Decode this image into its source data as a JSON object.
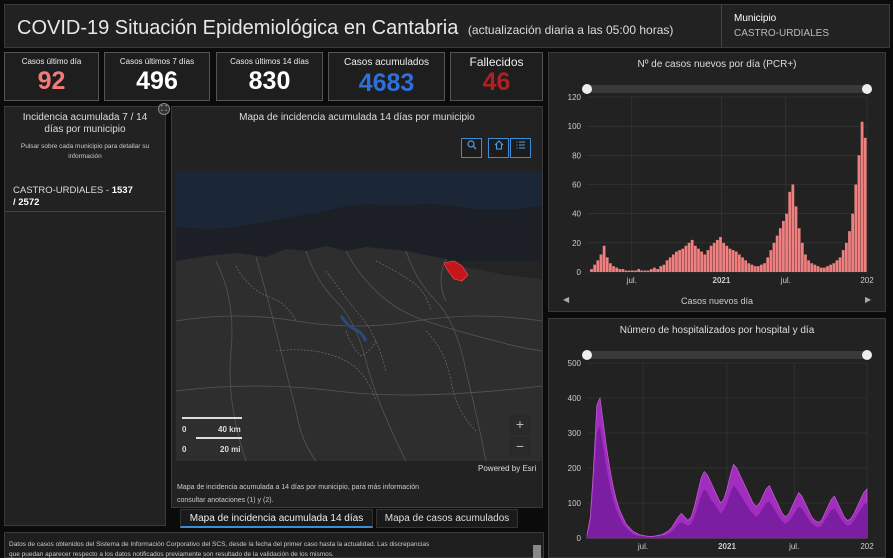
{
  "header": {
    "title": "COVID-19 Situación Epidemiológica en Cantabria",
    "subtitle": "(actualización diaria a las 05:00 horas)",
    "municipio_label": "Municipio",
    "municipio_value": "CASTRO-URDIALES"
  },
  "kpis": [
    {
      "label": "Casos último día",
      "value": "92",
      "color": "#f47a7a"
    },
    {
      "label": "Casos últimos 7 días",
      "value": "496",
      "color": "#ffffff"
    },
    {
      "label": "Casos últimos 14 días",
      "value": "830",
      "color": "#ffffff"
    },
    {
      "label": "Casos acumulados",
      "value": "4683",
      "color": "#2f6fd8"
    },
    {
      "label": "Fallecidos",
      "value": "46",
      "color": "#b01f24"
    }
  ],
  "left_panel": {
    "title": "Incidencia acumulada 7 / 14 días por municipio",
    "hint": "Pulsar sobre cada municipio para detallar su información",
    "item_name": "CASTRO-URDIALES",
    "item_sep": " - ",
    "item_value_a": "1537",
    "item_value_b": "/ 2572"
  },
  "map": {
    "title": "Mapa de incidencia acumulada 14 días por municipio",
    "search_icon": "search-icon",
    "home_icon": "home-icon",
    "list_icon": "list-icon",
    "scale_km_zero": "0",
    "scale_km": "40 km",
    "scale_mi_zero": "0",
    "scale_mi": "20 mi",
    "zoom_in": "+",
    "zoom_out": "−",
    "powered": "Powered by Esri",
    "caption_line1": "Mapa de incidencia acumulada a 14 días por municipio, para más información",
    "caption_line2": "consultar anotaciones (1) y (2).",
    "highlight_color": "#c4161c"
  },
  "tabs": [
    {
      "label": "Mapa de incidencia acumulada 14 días",
      "active": true
    },
    {
      "label": "Mapa de casos acumulados",
      "active": false
    }
  ],
  "footer": {
    "line1": "Datos de casos obtenidos del Sistema de Información Corporativo del SCS, desde la fecha del primer caso hasta la actualidad. Las discrepancias",
    "line2": "que puedan aparecer respecto a los datos notificados previamente son resultado de la validación de los mismos."
  },
  "chart1": {
    "title": "Nº de casos nuevos por día (PCR+)",
    "legend": "Casos nuevos día",
    "color": "#f08080",
    "nav_left": "◀",
    "nav_right": "▶"
  },
  "chart2": {
    "title": "Número de hospitalizados por hospital y día",
    "color_a": "#b030d0",
    "color_b": "#7a1da0"
  },
  "chart_data": [
    {
      "type": "bar",
      "title": "Nº de casos nuevos por día (PCR+)",
      "xlabel": "",
      "ylabel": "",
      "ylim": [
        0,
        120
      ],
      "yticks": [
        0,
        20,
        40,
        60,
        80,
        100,
        120
      ],
      "xticks": [
        "jul.",
        "2021",
        "jul.",
        "202"
      ],
      "grid": true,
      "legend": "bottom",
      "series": [
        {
          "name": "Casos nuevos día",
          "values": [
            0,
            2,
            5,
            8,
            12,
            18,
            10,
            6,
            4,
            3,
            2,
            2,
            1,
            1,
            1,
            1,
            2,
            1,
            1,
            1,
            2,
            3,
            2,
            4,
            5,
            8,
            10,
            12,
            14,
            15,
            16,
            18,
            20,
            22,
            18,
            16,
            14,
            12,
            15,
            18,
            20,
            22,
            24,
            20,
            18,
            16,
            15,
            14,
            12,
            10,
            8,
            6,
            5,
            4,
            4,
            5,
            6,
            10,
            15,
            20,
            25,
            30,
            35,
            40,
            55,
            60,
            45,
            30,
            20,
            12,
            8,
            6,
            5,
            4,
            3,
            3,
            4,
            5,
            6,
            8,
            10,
            15,
            20,
            28,
            40,
            60,
            80,
            103,
            92
          ]
        }
      ]
    },
    {
      "type": "area",
      "title": "Número de hospitalizados por hospital y día",
      "xlabel": "",
      "ylabel": "",
      "ylim": [
        0,
        500
      ],
      "yticks": [
        0,
        100,
        200,
        300,
        400,
        500
      ],
      "xticks": [
        "jul.",
        "2021",
        "jul.",
        "202"
      ],
      "grid": true,
      "series": [
        {
          "name": "",
          "values": [
            10,
            60,
            200,
            380,
            400,
            330,
            260,
            200,
            150,
            110,
            80,
            60,
            40,
            30,
            20,
            15,
            10,
            8,
            6,
            5,
            5,
            6,
            8,
            10,
            15,
            20,
            30,
            45,
            60,
            70,
            60,
            50,
            60,
            90,
            130,
            170,
            190,
            180,
            160,
            140,
            120,
            100,
            110,
            140,
            180,
            210,
            200,
            180,
            160,
            140,
            120,
            100,
            90,
            100,
            120,
            140,
            150,
            130,
            110,
            90,
            70,
            60,
            70,
            90,
            110,
            130,
            120,
            100,
            80,
            60,
            50,
            45,
            50,
            70,
            90,
            110,
            120,
            100,
            80,
            60,
            50,
            55,
            70,
            90,
            110,
            130,
            140
          ]
        },
        {
          "name": "",
          "values": [
            5,
            40,
            150,
            300,
            320,
            260,
            200,
            150,
            110,
            80,
            60,
            40,
            30,
            20,
            12,
            8,
            6,
            5,
            4,
            3,
            3,
            4,
            5,
            6,
            8,
            12,
            18,
            28,
            40,
            45,
            40,
            35,
            40,
            60,
            90,
            120,
            140,
            130,
            110,
            100,
            85,
            70,
            80,
            100,
            130,
            150,
            140,
            125,
            110,
            95,
            80,
            70,
            60,
            70,
            85,
            100,
            105,
            90,
            75,
            60,
            48,
            40,
            48,
            60,
            75,
            90,
            85,
            70,
            55,
            42,
            35,
            30,
            35,
            50,
            65,
            80,
            85,
            70,
            55,
            42,
            35,
            38,
            50,
            65,
            80,
            95,
            100
          ]
        }
      ]
    }
  ]
}
